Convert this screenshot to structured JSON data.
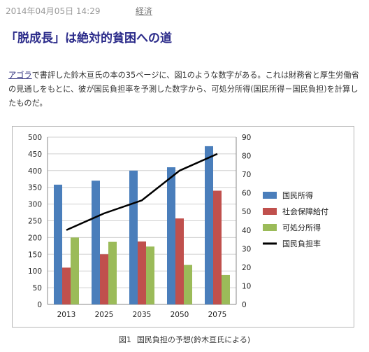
{
  "post": {
    "date": "2014年04月05日 14:29",
    "category": "経済",
    "title": "「脱成長」は絶対的貧困への道",
    "body_link": "アゴラ",
    "body_rest": "で書評した鈴木亘氏の本の35ページに、図1のような数字がある。これは財務省と厚生労働省の見通しをもとに、彼が国民負担率を予測した数字から、可処分所得(国民所得－国民負担)を計算したものだ。"
  },
  "caption": {
    "label": "図1",
    "text": "国民負担の予想(鈴木亘氏による)"
  },
  "chart_data": {
    "type": "bar",
    "categories": [
      "2013",
      "2025",
      "2035",
      "2050",
      "2075"
    ],
    "series": [
      {
        "name": "国民所得",
        "values": [
          358,
          370,
          400,
          410,
          473
        ],
        "color": "#4a7ebb",
        "axis": "left"
      },
      {
        "name": "社会保障給付",
        "values": [
          110,
          150,
          188,
          257,
          340
        ],
        "color": "#c0504d",
        "axis": "left"
      },
      {
        "name": "可処分所得",
        "values": [
          200,
          187,
          173,
          118,
          88
        ],
        "color": "#9bbb59",
        "axis": "left"
      },
      {
        "name": "国民負担率",
        "values": [
          40,
          49,
          56,
          72,
          81
        ],
        "color": "#000000",
        "axis": "right",
        "type": "line"
      }
    ],
    "ylim": [
      0,
      500
    ],
    "y2lim": [
      0,
      90
    ],
    "yticks": [
      "0",
      "50",
      "100",
      "150",
      "200",
      "250",
      "300",
      "350",
      "400",
      "450",
      "500"
    ],
    "y2ticks": [
      "0",
      "10",
      "20",
      "30",
      "40",
      "50",
      "60",
      "70",
      "80",
      "90"
    ],
    "grid": true,
    "legend_position": "right"
  }
}
